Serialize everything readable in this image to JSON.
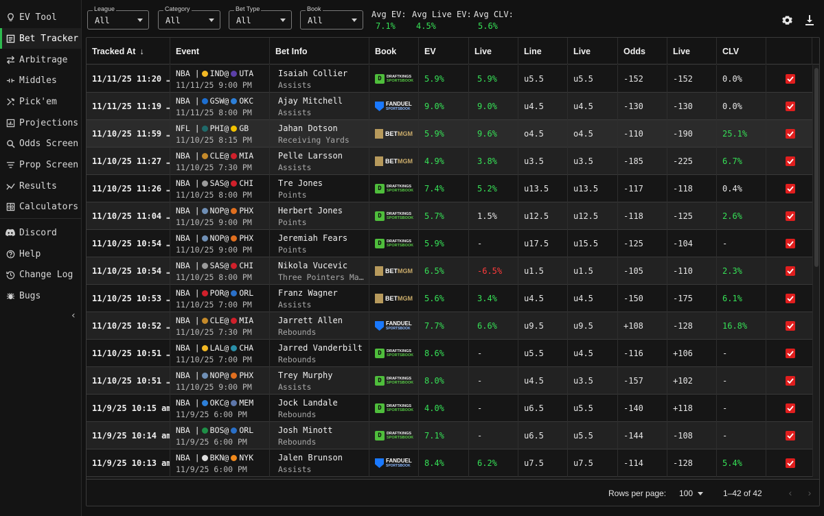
{
  "sidebar": {
    "items": [
      {
        "label": "EV Tool",
        "icon": "lightbulb-icon",
        "name": "ev-tool"
      },
      {
        "label": "Bet Tracker",
        "icon": "receipt-icon",
        "name": "bet-tracker",
        "active": true
      },
      {
        "label": "Arbitrage",
        "icon": "swap-arrows-icon",
        "name": "arbitrage"
      },
      {
        "label": "Middles",
        "icon": "middle-lines-icon",
        "name": "middles"
      },
      {
        "label": "Pick'em",
        "icon": "tools-icon",
        "name": "pickem"
      },
      {
        "label": "Projections",
        "icon": "bar-chart-icon",
        "name": "projections"
      },
      {
        "label": "Odds Screen",
        "icon": "search-icon",
        "name": "odds-screen"
      },
      {
        "label": "Prop Screen",
        "icon": "filter-lines-icon",
        "name": "prop-screen"
      },
      {
        "label": "Results",
        "icon": "trend-line-icon",
        "name": "results"
      },
      {
        "label": "Calculators",
        "icon": "calculator-icon",
        "name": "calculators"
      },
      {
        "label": "Discord",
        "icon": "discord-icon",
        "name": "discord"
      },
      {
        "label": "Help",
        "icon": "help-circle-icon",
        "name": "help"
      },
      {
        "label": "Change Log",
        "icon": "history-icon",
        "name": "change-log"
      },
      {
        "label": "Bugs",
        "icon": "bug-icon",
        "name": "bugs"
      }
    ],
    "collapse_icon": "chevron-left-icon"
  },
  "filters": [
    {
      "label": "League",
      "value": "All",
      "name": "league"
    },
    {
      "label": "Category",
      "value": "All",
      "name": "category"
    },
    {
      "label": "Bet Type",
      "value": "All",
      "name": "bet-type"
    },
    {
      "label": "Book",
      "value": "All",
      "name": "book"
    }
  ],
  "stats": [
    {
      "label": "Avg EV:",
      "value": "7.1%",
      "name": "avg-ev"
    },
    {
      "label": "Avg Live EV:",
      "value": "4.5%",
      "name": "avg-live-ev"
    },
    {
      "label": "Avg CLV:",
      "value": "5.6%",
      "name": "avg-clv"
    }
  ],
  "columns": [
    "Tracked At",
    "Event",
    "Bet Info",
    "Book",
    "EV",
    "Live",
    "Line",
    "Live",
    "Odds",
    "Live",
    "CLV",
    ""
  ],
  "sort_indicator": "↓",
  "rows": [
    {
      "tracked": "11/11/25 11:20 …",
      "league": "NBA",
      "away": "IND",
      "home": "UTA",
      "away_color": "#f2b824",
      "home_color": "#5b3fa8",
      "game_time": "11/11/25 9:00 PM",
      "player": "Isaiah Collier",
      "market": "Assists",
      "book": "dk",
      "ev": "5.9%",
      "live_ev": "5.9%",
      "live_ev_cls": "green",
      "line": "u5.5",
      "live_line": "u5.5",
      "odds": "-152",
      "live_odds": "-152",
      "clv": "0.0%",
      "clv_cls": ""
    },
    {
      "tracked": "11/11/25 11:19 …",
      "league": "NBA",
      "away": "GSW",
      "home": "OKC",
      "away_color": "#1d6fd1",
      "home_color": "#2d7fd8",
      "game_time": "11/11/25 8:00 PM",
      "player": "Ajay Mitchell",
      "market": "Assists",
      "book": "fd",
      "ev": "9.0%",
      "live_ev": "9.0%",
      "live_ev_cls": "green",
      "line": "u4.5",
      "live_line": "u4.5",
      "odds": "-130",
      "live_odds": "-130",
      "clv": "0.0%",
      "clv_cls": ""
    },
    {
      "tracked": "11/10/25 11:59 …",
      "league": "NFL",
      "away": "PHI",
      "home": "GB",
      "away_color": "#1f6a6a",
      "home_color": "#f2c200",
      "game_time": "11/10/25 8:15 PM",
      "player": "Jahan Dotson",
      "market": "Receiving Yards",
      "book": "mgm",
      "ev": "5.9%",
      "live_ev": "9.6%",
      "live_ev_cls": "green",
      "line": "o4.5",
      "live_line": "o4.5",
      "odds": "-110",
      "live_odds": "-190",
      "clv": "25.1%",
      "clv_cls": "green"
    },
    {
      "tracked": "11/10/25 11:27 …",
      "league": "NBA",
      "away": "CLE",
      "home": "MIA",
      "away_color": "#c58a2a",
      "home_color": "#d0202b",
      "game_time": "11/10/25 7:30 PM",
      "player": "Pelle Larsson",
      "market": "Assists",
      "book": "mgm",
      "ev": "4.9%",
      "live_ev": "3.8%",
      "live_ev_cls": "green",
      "line": "u3.5",
      "live_line": "u3.5",
      "odds": "-185",
      "live_odds": "-225",
      "clv": "6.7%",
      "clv_cls": "green"
    },
    {
      "tracked": "11/10/25 11:26 …",
      "league": "NBA",
      "away": "SAS",
      "home": "CHI",
      "away_color": "#9a9a9a",
      "home_color": "#d0202b",
      "game_time": "11/10/25 8:00 PM",
      "player": "Tre Jones",
      "market": "Points",
      "book": "dk",
      "ev": "7.4%",
      "live_ev": "5.2%",
      "live_ev_cls": "green",
      "line": "u13.5",
      "live_line": "u13.5",
      "odds": "-117",
      "live_odds": "-118",
      "clv": "0.4%",
      "clv_cls": ""
    },
    {
      "tracked": "11/10/25 11:04 …",
      "league": "NBA",
      "away": "NOP",
      "home": "PHX",
      "away_color": "#6f8fb5",
      "home_color": "#e06f1f",
      "game_time": "11/10/25 9:00 PM",
      "player": "Herbert Jones",
      "market": "Points",
      "book": "dk",
      "ev": "5.7%",
      "live_ev": "1.5%",
      "live_ev_cls": "",
      "line": "u12.5",
      "live_line": "u12.5",
      "odds": "-118",
      "live_odds": "-125",
      "clv": "2.6%",
      "clv_cls": "green"
    },
    {
      "tracked": "11/10/25 10:54 …",
      "league": "NBA",
      "away": "NOP",
      "home": "PHX",
      "away_color": "#6f8fb5",
      "home_color": "#e06f1f",
      "game_time": "11/10/25 9:00 PM",
      "player": "Jeremiah Fears",
      "market": "Points",
      "book": "dk",
      "ev": "5.9%",
      "live_ev": "-",
      "live_ev_cls": "",
      "line": "u17.5",
      "live_line": "u15.5",
      "odds": "-125",
      "live_odds": "-104",
      "clv": "-",
      "clv_cls": ""
    },
    {
      "tracked": "11/10/25 10:54 …",
      "league": "NBA",
      "away": "SAS",
      "home": "CHI",
      "away_color": "#9a9a9a",
      "home_color": "#d0202b",
      "game_time": "11/10/25 8:00 PM",
      "player": "Nikola Vucevic",
      "market": "Three Pointers Ma…",
      "book": "mgm",
      "ev": "6.5%",
      "live_ev": "-6.5%",
      "live_ev_cls": "red",
      "line": "u1.5",
      "live_line": "u1.5",
      "odds": "-105",
      "live_odds": "-110",
      "clv": "2.3%",
      "clv_cls": "green"
    },
    {
      "tracked": "11/10/25 10:53 …",
      "league": "NBA",
      "away": "POR",
      "home": "ORL",
      "away_color": "#d0202b",
      "home_color": "#2a70c8",
      "game_time": "11/10/25 7:00 PM",
      "player": "Franz Wagner",
      "market": "Assists",
      "book": "mgm",
      "ev": "5.6%",
      "live_ev": "3.4%",
      "live_ev_cls": "green",
      "line": "u4.5",
      "live_line": "u4.5",
      "odds": "-150",
      "live_odds": "-175",
      "clv": "6.1%",
      "clv_cls": "green"
    },
    {
      "tracked": "11/10/25 10:52 …",
      "league": "NBA",
      "away": "CLE",
      "home": "MIA",
      "away_color": "#c58a2a",
      "home_color": "#d0202b",
      "game_time": "11/10/25 7:30 PM",
      "player": "Jarrett Allen",
      "market": "Rebounds",
      "book": "fd",
      "ev": "7.7%",
      "live_ev": "6.6%",
      "live_ev_cls": "green",
      "line": "u9.5",
      "live_line": "u9.5",
      "odds": "+108",
      "live_odds": "-128",
      "clv": "16.8%",
      "clv_cls": "green"
    },
    {
      "tracked": "11/10/25 10:51 …",
      "league": "NBA",
      "away": "LAL",
      "home": "CHA",
      "away_color": "#f2b824",
      "home_color": "#2a8fa8",
      "game_time": "11/10/25 7:00 PM",
      "player": "Jarred Vanderbilt",
      "market": "Rebounds",
      "book": "dk",
      "ev": "8.6%",
      "live_ev": "-",
      "live_ev_cls": "",
      "line": "u5.5",
      "live_line": "u4.5",
      "odds": "-116",
      "live_odds": "+106",
      "clv": "-",
      "clv_cls": ""
    },
    {
      "tracked": "11/10/25 10:51 …",
      "league": "NBA",
      "away": "NOP",
      "home": "PHX",
      "away_color": "#6f8fb5",
      "home_color": "#e06f1f",
      "game_time": "11/10/25 9:00 PM",
      "player": "Trey Murphy",
      "market": "Assists",
      "book": "dk",
      "ev": "8.0%",
      "live_ev": "-",
      "live_ev_cls": "",
      "line": "u4.5",
      "live_line": "u3.5",
      "odds": "-157",
      "live_odds": "+102",
      "clv": "-",
      "clv_cls": ""
    },
    {
      "tracked": "11/9/25 10:15 am",
      "league": "NBA",
      "away": "OKC",
      "home": "MEM",
      "away_color": "#2d7fd8",
      "home_color": "#5d76a9",
      "game_time": "11/9/25 6:00 PM",
      "player": "Jock Landale",
      "market": "Rebounds",
      "book": "dk",
      "ev": "4.0%",
      "live_ev": "-",
      "live_ev_cls": "",
      "line": "u6.5",
      "live_line": "u5.5",
      "odds": "-140",
      "live_odds": "+118",
      "clv": "-",
      "clv_cls": ""
    },
    {
      "tracked": "11/9/25 10:14 am",
      "league": "NBA",
      "away": "BOS",
      "home": "ORL",
      "away_color": "#1e8f47",
      "home_color": "#2a70c8",
      "game_time": "11/9/25 6:00 PM",
      "player": "Josh Minott",
      "market": "Rebounds",
      "book": "dk",
      "ev": "7.1%",
      "live_ev": "-",
      "live_ev_cls": "",
      "line": "u6.5",
      "live_line": "u5.5",
      "odds": "-144",
      "live_odds": "-108",
      "clv": "-",
      "clv_cls": ""
    },
    {
      "tracked": "11/9/25 10:13 am",
      "league": "NBA",
      "away": "BKN",
      "home": "NYK",
      "away_color": "#dddddd",
      "home_color": "#f28a1c",
      "game_time": "11/9/25 6:00 PM",
      "player": "Jalen Brunson",
      "market": "Assists",
      "book": "fd",
      "ev": "8.4%",
      "live_ev": "6.2%",
      "live_ev_cls": "green",
      "line": "u7.5",
      "live_line": "u7.5",
      "odds": "-114",
      "live_odds": "-128",
      "clv": "5.4%",
      "clv_cls": "green"
    }
  ],
  "books": {
    "dk": {
      "line1": "DRAFTKINGS",
      "line2": "SPORTSBOOK",
      "glyph": "D"
    },
    "fd": {
      "line1": "FANDUEL",
      "line2": "SPORTSBOOK"
    },
    "mgm": {
      "pre": "BET",
      "post": "MGM"
    }
  },
  "footer": {
    "rows_per_page_label": "Rows per page:",
    "rows_per_page_value": "100",
    "range": "1–42 of 42"
  },
  "colors": {
    "accent": "#2dbb4f",
    "positive": "#36e056",
    "negative": "#ff3b3b",
    "checkbox": "#e01e1e"
  }
}
